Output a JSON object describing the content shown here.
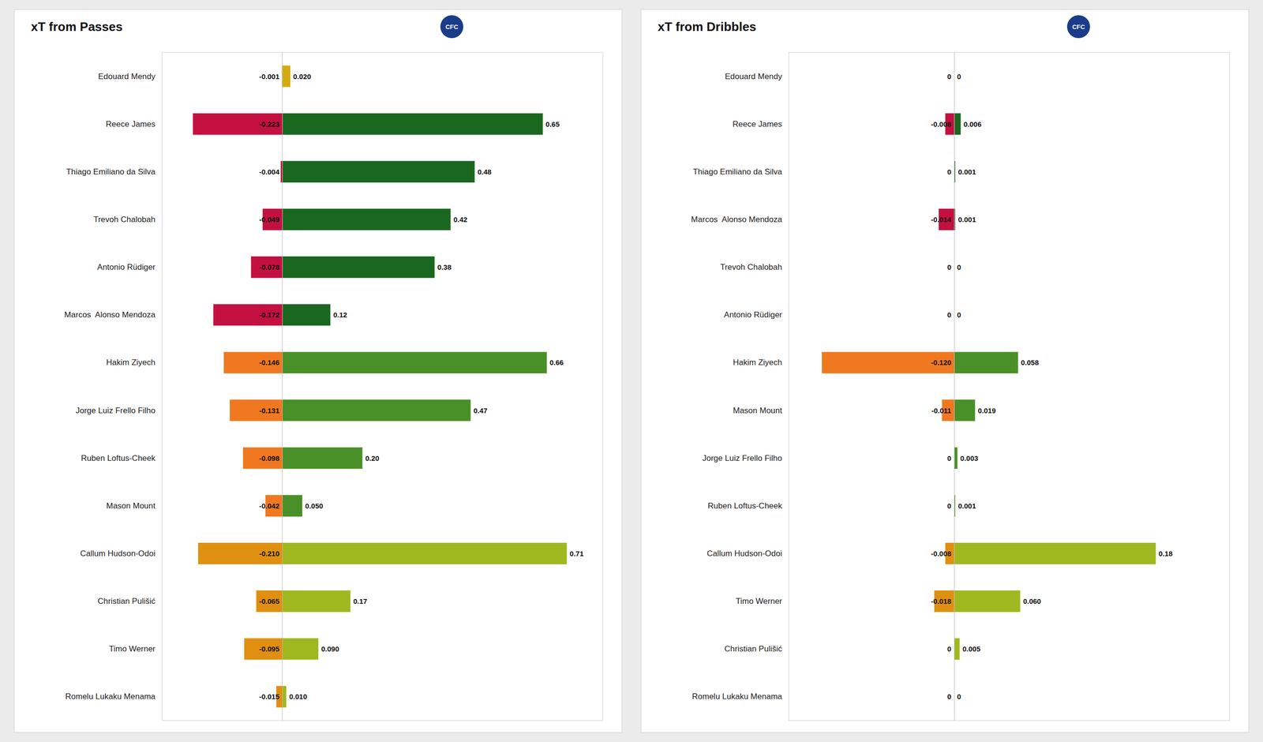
{
  "chart_data": [
    {
      "type": "bar",
      "title": "xT from Passes",
      "orientation": "horizontal",
      "categories": [
        "Edouard Mendy",
        "Reece James",
        "Thiago Emiliano da Silva",
        "Trevoh Chalobah",
        "Antonio Rüdiger",
        "Marcos  Alonso Mendoza",
        "Hakim Ziyech",
        "Jorge Luiz Frello Filho",
        "Ruben Loftus-Cheek",
        "Mason Mount",
        "Callum Hudson-Odoi",
        "Christian Pulišić",
        "Timo Werner",
        "Romelu Lukaku Menama"
      ],
      "series": [
        {
          "values": [
            -0.001,
            -0.223,
            -0.004,
            -0.049,
            -0.078,
            -0.172,
            -0.146,
            -0.131,
            -0.098,
            -0.042,
            -0.21,
            -0.065,
            -0.095,
            -0.015
          ],
          "value_labels": [
            "-0.001",
            "-0.223",
            "-0.004",
            "-0.049",
            "-0.078",
            "-0.172",
            "-0.146",
            "-0.131",
            "-0.098",
            "-0.042",
            "-0.210",
            "-0.065",
            "-0.095",
            "-0.015"
          ],
          "colors": [
            "#d4aa10",
            "#c41040",
            "#c41040",
            "#c41040",
            "#c41040",
            "#c41040",
            "#f07820",
            "#f07820",
            "#f07820",
            "#f07820",
            "#e09010",
            "#e09010",
            "#e09010",
            "#e09010"
          ]
        },
        {
          "values": [
            0.02,
            0.65,
            0.48,
            0.42,
            0.38,
            0.12,
            0.66,
            0.47,
            0.2,
            0.05,
            0.71,
            0.17,
            0.09,
            0.01
          ],
          "value_labels": [
            "0.020",
            "0.65",
            "0.48",
            "0.42",
            "0.38",
            "0.12",
            "0.66",
            "0.47",
            "0.20",
            "0.050",
            "0.71",
            "0.17",
            "0.090",
            "0.010"
          ],
          "colors": [
            "#d4aa10",
            "#1a6820",
            "#1a6820",
            "#1a6820",
            "#1a6820",
            "#1a6820",
            "#4a9028",
            "#4a9028",
            "#4a9028",
            "#4a9028",
            "#a0b820",
            "#a0b820",
            "#a0b820",
            "#a0b820"
          ]
        }
      ],
      "xlim": [
        -0.3,
        0.8
      ],
      "tick_labels": "y",
      "grid": false,
      "data_labels": true,
      "annotations": [
        "CFC"
      ]
    },
    {
      "type": "bar",
      "title": "xT from Dribbles",
      "orientation": "horizontal",
      "categories": [
        "Edouard Mendy",
        "Reece James",
        "Thiago Emiliano da Silva",
        "Marcos  Alonso Mendoza",
        "Trevoh Chalobah",
        "Antonio Rüdiger",
        "Hakim Ziyech",
        "Mason Mount",
        "Jorge Luiz Frello Filho",
        "Ruben Loftus-Cheek",
        "Callum Hudson-Odoi",
        "Timo Werner",
        "Christian Pulišić",
        "Romelu Lukaku Menama"
      ],
      "series": [
        {
          "values": [
            0.0,
            -0.008,
            0.0,
            -0.014,
            0.0,
            0.0,
            -0.12,
            -0.011,
            0.0,
            0.0,
            -0.008,
            -0.018,
            0.0,
            0.0
          ],
          "value_labels": [
            "0",
            "-0.008",
            "0",
            "-0.014",
            "0",
            "0",
            "-0.120",
            "-0.011",
            "0",
            "0",
            "-0.008",
            "-0.018",
            "0",
            "0"
          ],
          "colors": [
            "#d4aa10",
            "#c41040",
            "#c41040",
            "#c41040",
            "#c41040",
            "#c41040",
            "#f07820",
            "#f07820",
            "#f07820",
            "#f07820",
            "#e09010",
            "#e09010",
            "#e09010",
            "#e09010"
          ]
        },
        {
          "values": [
            0.0,
            0.006,
            0.001,
            0.001,
            0.0,
            0.0,
            0.058,
            0.019,
            0.003,
            0.001,
            0.183,
            0.06,
            0.005,
            0.0
          ],
          "value_labels": [
            "0",
            "0.006",
            "0.001",
            "0.001",
            "0",
            "0",
            "0.058",
            "0.019",
            "0.003",
            "0.001",
            "0.18",
            "0.060",
            "0.005",
            "0"
          ],
          "colors": [
            "#d4aa10",
            "#1a6820",
            "#1a6820",
            "#1a6820",
            "#1a6820",
            "#1a6820",
            "#4a9028",
            "#4a9028",
            "#4a9028",
            "#4a9028",
            "#a0b820",
            "#a0b820",
            "#a0b820",
            "#a0b820"
          ]
        }
      ],
      "xlim": [
        -0.15,
        0.25
      ],
      "tick_labels": "y",
      "grid": false,
      "data_labels": true,
      "annotations": [
        "CFC"
      ]
    }
  ]
}
